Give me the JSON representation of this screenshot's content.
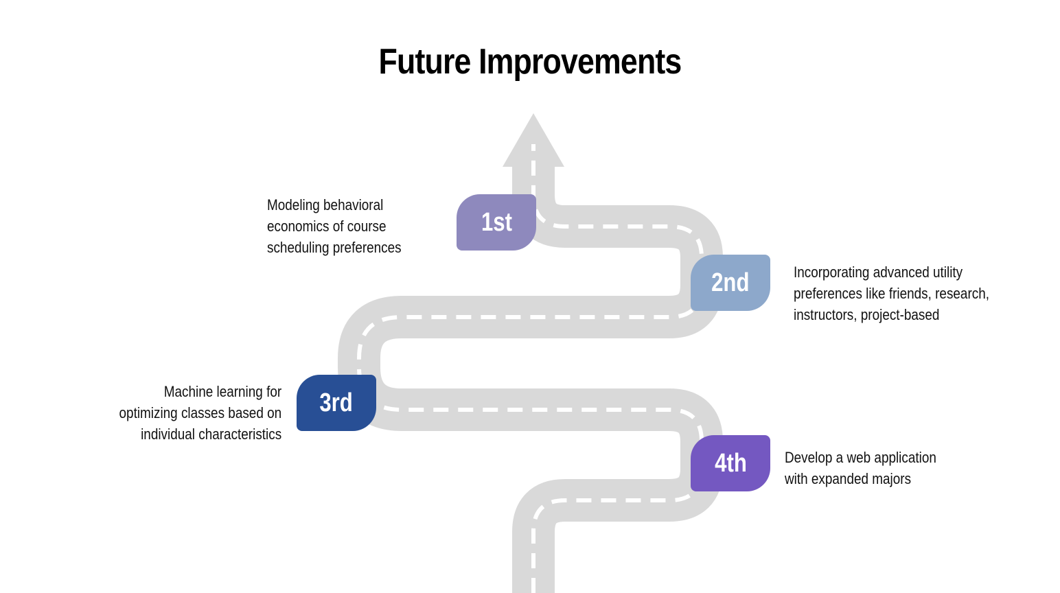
{
  "title": "Future Improvements",
  "colors": {
    "road": "#d9d9d9",
    "dash": "#ffffff",
    "step1": "#8e89bd",
    "step2": "#8da8cb",
    "step3": "#284f95",
    "step4": "#7458c1"
  },
  "steps": [
    {
      "label": "1st",
      "lines": [
        "Modeling behavioral",
        "economics of course",
        "scheduling preferences"
      ]
    },
    {
      "label": "2nd",
      "lines": [
        "Incorporating advanced utility",
        "preferences like friends, research,",
        "instructors, project-based"
      ]
    },
    {
      "label": "3rd",
      "lines": [
        "Machine learning for",
        "optimizing classes based on",
        "individual characteristics"
      ]
    },
    {
      "label": "4th",
      "lines": [
        "Develop a web application",
        "with expanded majors"
      ]
    }
  ]
}
